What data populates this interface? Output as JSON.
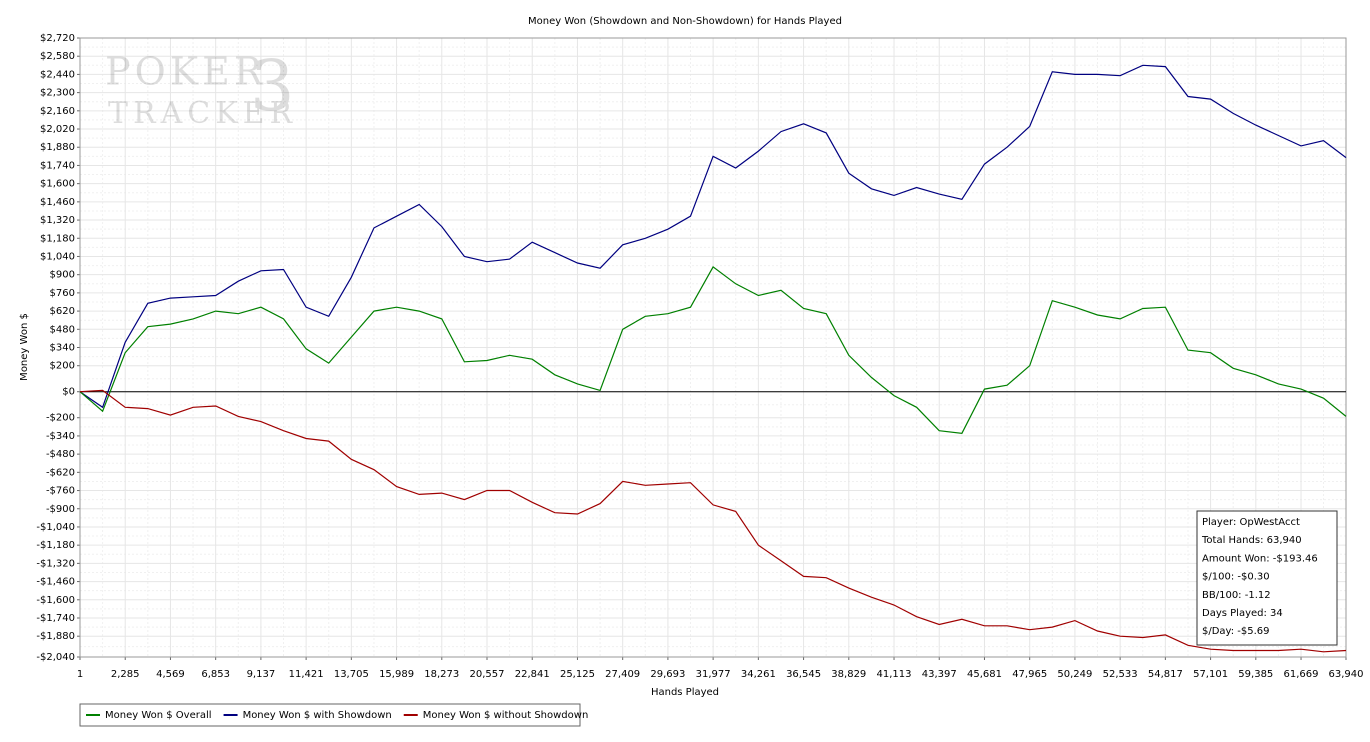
{
  "chart_data": {
    "type": "line",
    "title": "Money Won (Showdown and Non-Showdown) for Hands Played",
    "xlabel": "Hands Played",
    "ylabel": "Money Won $",
    "watermark": [
      "POKER",
      "TRACKER",
      "3"
    ],
    "info_box": [
      "Player: OpWestAcct",
      "Total Hands: 63,940",
      "Amount Won: -$193.46",
      "$/100: -$0.30",
      "BB/100: -1.12",
      "Days Played: 34",
      "$/Day: -$5.69"
    ],
    "grid": true,
    "legend": "bottom-left",
    "xlim": [
      1,
      63940
    ],
    "ylim": [
      -2040,
      2720
    ],
    "xticks": [
      1,
      {
        "value": 2285,
        "label": "2,285"
      },
      {
        "value": 4569,
        "label": "4,569"
      },
      {
        "value": 6853,
        "label": "6,853"
      },
      {
        "value": 9137,
        "label": "9,137"
      },
      {
        "value": 11421,
        "label": "11,421"
      },
      {
        "value": 13705,
        "label": "13,705"
      },
      {
        "value": 15989,
        "label": "15,989"
      },
      {
        "value": 18273,
        "label": "18,273"
      },
      {
        "value": 20557,
        "label": "20,557"
      },
      {
        "value": 22841,
        "label": "22,841"
      },
      {
        "value": 25125,
        "label": "25,125"
      },
      {
        "value": 27409,
        "label": "27,409"
      },
      {
        "value": 29693,
        "label": "29,693"
      },
      {
        "value": 31977,
        "label": "31,977"
      },
      {
        "value": 34261,
        "label": "34,261"
      },
      {
        "value": 36545,
        "label": "36,545"
      },
      {
        "value": 38829,
        "label": "38,829"
      },
      {
        "value": 41113,
        "label": "41,113"
      },
      {
        "value": 43397,
        "label": "43,397"
      },
      {
        "value": 45681,
        "label": "45,681"
      },
      {
        "value": 47965,
        "label": "47,965"
      },
      {
        "value": 50249,
        "label": "50,249"
      },
      {
        "value": 52533,
        "label": "52,533"
      },
      {
        "value": 54817,
        "label": "54,817"
      },
      {
        "value": 57101,
        "label": "57,101"
      },
      {
        "value": 59385,
        "label": "59,385"
      },
      {
        "value": 61669,
        "label": "61,669"
      },
      {
        "value": 63940,
        "label": "63,940"
      }
    ],
    "yticks": [
      {
        "value": 2720,
        "label": "$2,720"
      },
      {
        "value": 2580,
        "label": "$2,580"
      },
      {
        "value": 2440,
        "label": "$2,440"
      },
      {
        "value": 2300,
        "label": "$2,300"
      },
      {
        "value": 2160,
        "label": "$2,160"
      },
      {
        "value": 2020,
        "label": "$2,020"
      },
      {
        "value": 1880,
        "label": "$1,880"
      },
      {
        "value": 1740,
        "label": "$1,740"
      },
      {
        "value": 1600,
        "label": "$1,600"
      },
      {
        "value": 1460,
        "label": "$1,460"
      },
      {
        "value": 1320,
        "label": "$1,320"
      },
      {
        "value": 1180,
        "label": "$1,180"
      },
      {
        "value": 1040,
        "label": "$1,040"
      },
      {
        "value": 900,
        "label": "$900"
      },
      {
        "value": 760,
        "label": "$760"
      },
      {
        "value": 620,
        "label": "$620"
      },
      {
        "value": 480,
        "label": "$480"
      },
      {
        "value": 340,
        "label": "$340"
      },
      {
        "value": 200,
        "label": "$200"
      },
      {
        "value": 0,
        "label": "$0"
      },
      {
        "value": -200,
        "label": "-$200"
      },
      {
        "value": -340,
        "label": "-$340"
      },
      {
        "value": -480,
        "label": "-$480"
      },
      {
        "value": -620,
        "label": "-$620"
      },
      {
        "value": -760,
        "label": "-$760"
      },
      {
        "value": -900,
        "label": "-$900"
      },
      {
        "value": -1040,
        "label": "-$1,040"
      },
      {
        "value": -1180,
        "label": "-$1,180"
      },
      {
        "value": -1320,
        "label": "-$1,320"
      },
      {
        "value": -1460,
        "label": "-$1,460"
      },
      {
        "value": -1600,
        "label": "-$1,600"
      },
      {
        "value": -1740,
        "label": "-$1,740"
      },
      {
        "value": -1880,
        "label": "-$1,880"
      },
      {
        "value": -2040,
        "label": "-$2,040"
      }
    ],
    "x": [
      1,
      1143,
      2285,
      3427,
      4569,
      5711,
      6853,
      7995,
      9137,
      10279,
      11421,
      12563,
      13705,
      14847,
      15989,
      17131,
      18273,
      19415,
      20557,
      21699,
      22841,
      23983,
      25125,
      26267,
      27409,
      28551,
      29693,
      30835,
      31977,
      33119,
      34261,
      35403,
      36545,
      37687,
      38829,
      39971,
      41113,
      42255,
      43397,
      44539,
      45681,
      46823,
      47965,
      49107,
      50249,
      51391,
      52533,
      53675,
      54817,
      55959,
      57101,
      58243,
      59385,
      60527,
      61669,
      62805,
      63940
    ],
    "series": [
      {
        "name": "Money Won $ Overall",
        "color": "#008000",
        "values": [
          0,
          -150,
          300,
          500,
          520,
          560,
          620,
          600,
          650,
          560,
          330,
          220,
          420,
          620,
          650,
          620,
          560,
          230,
          240,
          280,
          250,
          130,
          60,
          10,
          480,
          580,
          600,
          650,
          960,
          830,
          740,
          780,
          640,
          600,
          280,
          110,
          -30,
          -120,
          -300,
          -320,
          20,
          50,
          200,
          700,
          650,
          590,
          560,
          640,
          650,
          320,
          300,
          180,
          130,
          60,
          20,
          -50,
          -190
        ]
      },
      {
        "name": "Money Won $ with Showdown",
        "color": "#000080",
        "values": [
          0,
          -120,
          380,
          680,
          720,
          730,
          740,
          850,
          930,
          940,
          650,
          580,
          880,
          1260,
          1350,
          1440,
          1270,
          1040,
          1000,
          1020,
          1150,
          1070,
          990,
          950,
          1130,
          1180,
          1250,
          1350,
          1810,
          1720,
          1850,
          2000,
          2060,
          1990,
          1680,
          1560,
          1510,
          1570,
          1520,
          1480,
          1750,
          1880,
          2040,
          2460,
          2440,
          2440,
          2430,
          2510,
          2500,
          2270,
          2250,
          2140,
          2050,
          1970,
          1890,
          1930,
          1800
        ]
      },
      {
        "name": "Money Won $ without Showdown",
        "color": "#a00000",
        "values": [
          0,
          10,
          -120,
          -130,
          -180,
          -120,
          -110,
          -190,
          -230,
          -300,
          -360,
          -380,
          -520,
          -600,
          -730,
          -790,
          -780,
          -830,
          -760,
          -760,
          -850,
          -930,
          -940,
          -860,
          -690,
          -720,
          -710,
          -700,
          -870,
          -920,
          -1180,
          -1300,
          -1420,
          -1430,
          -1510,
          -1580,
          -1640,
          -1730,
          -1790,
          -1750,
          -1800,
          -1800,
          -1830,
          -1810,
          -1760,
          -1840,
          -1880,
          -1890,
          -1870,
          -1950,
          -1980,
          -1990,
          -1990,
          -1990,
          -1980,
          -2000,
          -1990
        ]
      }
    ]
  }
}
